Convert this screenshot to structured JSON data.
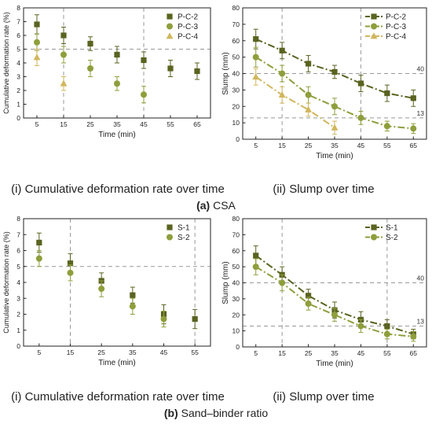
{
  "figure": {
    "sections": [
      {
        "label_bold": "(a)",
        "label_rest": " CSA"
      },
      {
        "label_bold": "(b)",
        "label_rest": " Sand–binder ratio"
      }
    ],
    "captions": [
      "(i) Cumulative deformation rate over time",
      "(ii) Slump over time",
      "(i) Cumulative deformation rate over time",
      "(ii) Slump over time"
    ]
  },
  "colors": {
    "dark": "#5a6320",
    "mid": "#8f9e3c",
    "light": "#d1b65c",
    "ref": "#999999"
  },
  "chart_data": [
    {
      "type": "scatter",
      "xlabel": "Time (min)",
      "ylabel": "Cumulative deformation rate (%)",
      "xticks": [
        5,
        15,
        25,
        35,
        45,
        55,
        65
      ],
      "yticks": [
        0,
        1,
        2,
        3,
        4,
        5,
        6,
        7,
        8
      ],
      "xlim": [
        0,
        70
      ],
      "ylim": [
        0,
        8
      ],
      "legend": "top-right",
      "hline": {
        "y": 5
      },
      "vlines": [
        15,
        45
      ],
      "series": [
        {
          "name": "P-C-2",
          "marker": "square",
          "color": "dark",
          "x": [
            5,
            15,
            25,
            35,
            45,
            55,
            65
          ],
          "y": [
            6.8,
            6.0,
            5.4,
            4.6,
            4.2,
            3.6,
            3.4
          ],
          "err": [
            0.7,
            0.6,
            0.5,
            0.6,
            0.6,
            0.6,
            0.6
          ]
        },
        {
          "name": "P-C-3",
          "marker": "circle",
          "color": "mid",
          "x": [
            5,
            15,
            25,
            35,
            45
          ],
          "y": [
            5.5,
            4.6,
            3.6,
            2.5,
            1.7
          ],
          "err": [
            0.6,
            0.6,
            0.6,
            0.5,
            0.6
          ]
        },
        {
          "name": "P-C-4",
          "marker": "triangle",
          "color": "light",
          "x": [
            5,
            15
          ],
          "y": [
            4.4,
            2.5
          ],
          "err": [
            0.6,
            0.5
          ]
        }
      ]
    },
    {
      "type": "line",
      "xlabel": "Time (min)",
      "ylabel": "Slump (mm)",
      "xticks": [
        5,
        15,
        25,
        35,
        45,
        55,
        65
      ],
      "yticks": [
        0,
        10,
        20,
        30,
        40,
        50,
        60,
        70,
        80
      ],
      "xlim": [
        0,
        70
      ],
      "ylim": [
        0,
        80
      ],
      "legend": "top-right",
      "hlines": [
        {
          "y": 40,
          "label": "40"
        },
        {
          "y": 13,
          "label": "13"
        }
      ],
      "vlines": [
        15,
        45
      ],
      "series": [
        {
          "name": "P-C-2",
          "marker": "square",
          "color": "dark",
          "x": [
            5,
            15,
            25,
            35,
            45,
            55,
            65
          ],
          "y": [
            61,
            54,
            46,
            41,
            34,
            28,
            25
          ],
          "err": [
            6,
            5,
            5,
            4,
            5,
            5,
            5
          ]
        },
        {
          "name": "P-C-3",
          "marker": "circle",
          "color": "mid",
          "x": [
            5,
            15,
            25,
            35,
            45,
            55,
            65
          ],
          "y": [
            50,
            40,
            27,
            20,
            13,
            8,
            6.5
          ],
          "err": [
            6,
            5,
            5,
            5,
            4,
            3,
            3
          ]
        },
        {
          "name": "P-C-4",
          "marker": "triangle",
          "color": "light",
          "x": [
            5,
            15,
            25,
            35
          ],
          "y": [
            38,
            27,
            18,
            7
          ],
          "err": [
            5,
            5,
            4,
            4
          ]
        }
      ]
    },
    {
      "type": "scatter",
      "xlabel": "Time (min)",
      "ylabel": "Cumulative deformation rate (%)",
      "xticks": [
        5,
        15,
        25,
        35,
        45,
        55
      ],
      "yticks": [
        0,
        1,
        2,
        3,
        4,
        5,
        6,
        7,
        8
      ],
      "xlim": [
        0,
        60
      ],
      "ylim": [
        0,
        8
      ],
      "legend": "top-right",
      "hline": {
        "y": 5
      },
      "vlines": [
        15,
        55
      ],
      "series": [
        {
          "name": "S-1",
          "marker": "square",
          "color": "dark",
          "x": [
            5,
            15,
            25,
            35,
            45,
            55
          ],
          "y": [
            6.5,
            5.2,
            4.1,
            3.2,
            2.0,
            1.7
          ],
          "err": [
            0.6,
            0.6,
            0.5,
            0.5,
            0.6,
            0.6
          ]
        },
        {
          "name": "S-2",
          "marker": "circle",
          "color": "mid",
          "x": [
            5,
            15,
            25,
            35,
            45
          ],
          "y": [
            5.5,
            4.6,
            3.6,
            2.5,
            1.7
          ],
          "err": [
            0.5,
            0.5,
            0.5,
            0.5,
            0.5
          ]
        }
      ]
    },
    {
      "type": "line",
      "xlabel": "Time (min)",
      "ylabel": "Slump (mm)",
      "xticks": [
        5,
        15,
        25,
        35,
        45,
        55,
        65
      ],
      "yticks": [
        0,
        10,
        20,
        30,
        40,
        50,
        60,
        70,
        80
      ],
      "xlim": [
        0,
        70
      ],
      "ylim": [
        0,
        80
      ],
      "legend": "top-right",
      "hlines": [
        {
          "y": 40,
          "label": "40"
        },
        {
          "y": 13,
          "label": "13"
        }
      ],
      "vlines": [
        15,
        55
      ],
      "series": [
        {
          "name": "S-1",
          "marker": "square",
          "color": "dark",
          "x": [
            5,
            15,
            25,
            35,
            45,
            55,
            65
          ],
          "y": [
            57,
            45,
            32,
            23,
            17,
            13,
            8
          ],
          "err": [
            6,
            5,
            4,
            5,
            5,
            4,
            3
          ]
        },
        {
          "name": "S-2",
          "marker": "circle",
          "color": "mid",
          "x": [
            5,
            15,
            25,
            35,
            45,
            55,
            65
          ],
          "y": [
            50,
            40,
            27,
            20,
            13,
            8,
            6.5
          ],
          "err": [
            5,
            5,
            4,
            4,
            4,
            3,
            3
          ]
        }
      ]
    }
  ]
}
